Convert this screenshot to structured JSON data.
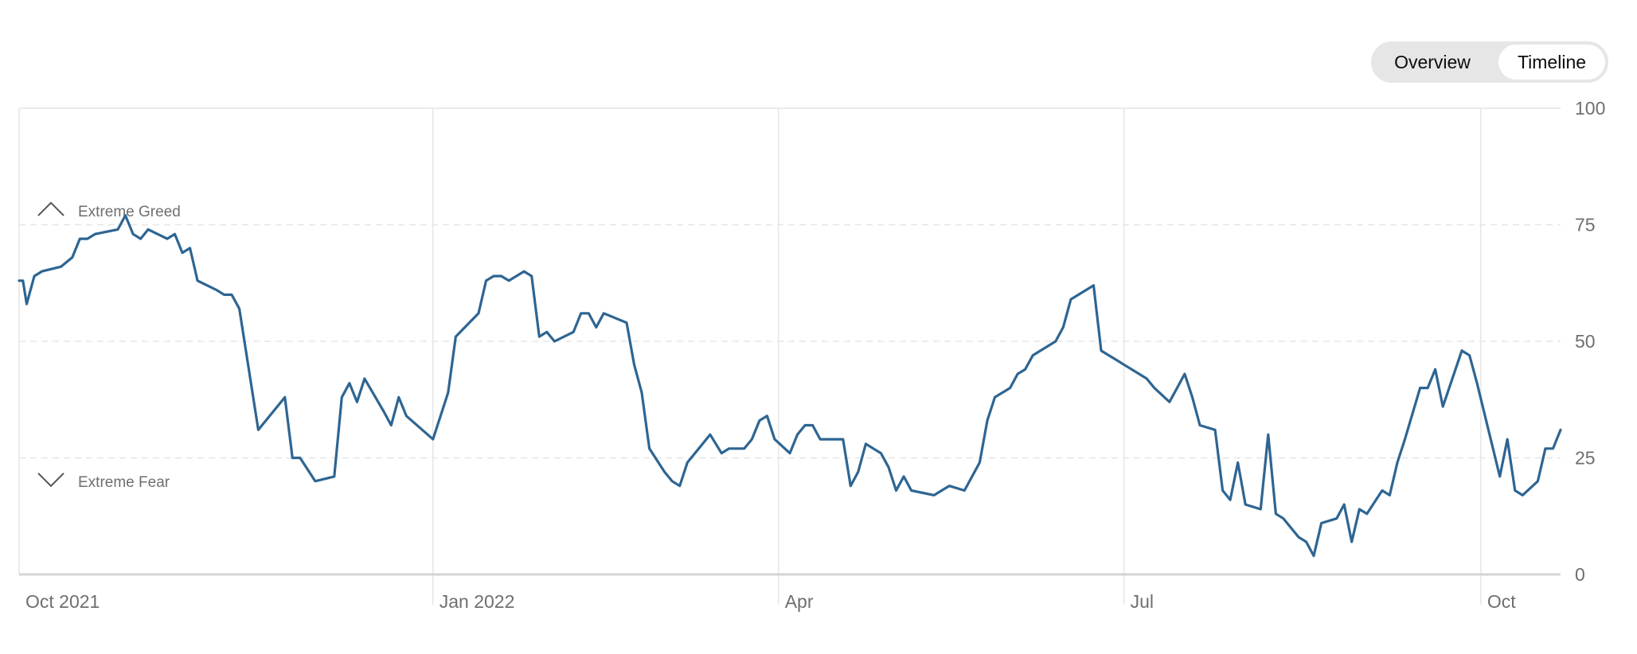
{
  "toggle": {
    "options": [
      "Overview",
      "Timeline"
    ],
    "selected": "Timeline"
  },
  "colors": {
    "line": "#2e6592",
    "grid": "#e6e6e6",
    "axis": "#d4d4d4",
    "text": "#6f6f6f",
    "toggle_bg": "#e6e6e6"
  },
  "chart_data": {
    "type": "line",
    "ylim": [
      0,
      100
    ],
    "yticks": [
      "0",
      "25",
      "50",
      "75",
      "100"
    ],
    "xticks": [
      {
        "label": "Oct 2021",
        "x": "2021-09-13"
      },
      {
        "label": "Jan 2022",
        "x": "2021-12-31"
      },
      {
        "label": "Apr",
        "x": "2022-04-01"
      },
      {
        "label": "Jul",
        "x": "2022-07-01"
      },
      {
        "label": "Oct",
        "x": "2022-10-03"
      }
    ],
    "xlim": [
      "2021-09-13",
      "2022-10-24"
    ],
    "annotations": [
      {
        "label": "Extreme Greed",
        "icon": "chevron-up-icon",
        "y": 78
      },
      {
        "label": "Extreme Fear",
        "icon": "chevron-down-icon",
        "y": 20
      }
    ],
    "grid": "horizontal dashed at 25, 50, 75; vertical solid at x ticks",
    "series": [
      {
        "values": [
          [
            "2021-09-13",
            63
          ],
          [
            "2021-09-14",
            63
          ],
          [
            "2021-09-15",
            58
          ],
          [
            "2021-09-17",
            64
          ],
          [
            "2021-09-19",
            65
          ],
          [
            "2021-09-24",
            66
          ],
          [
            "2021-09-27",
            68
          ],
          [
            "2021-09-29",
            72
          ],
          [
            "2021-10-01",
            72
          ],
          [
            "2021-10-03",
            73
          ],
          [
            "2021-10-09",
            74
          ],
          [
            "2021-10-11",
            77
          ],
          [
            "2021-10-13",
            73
          ],
          [
            "2021-10-15",
            72
          ],
          [
            "2021-10-17",
            74
          ],
          [
            "2021-10-22",
            72
          ],
          [
            "2021-10-24",
            73
          ],
          [
            "2021-10-26",
            69
          ],
          [
            "2021-10-28",
            70
          ],
          [
            "2021-10-30",
            63
          ],
          [
            "2021-11-04",
            61
          ],
          [
            "2021-11-06",
            60
          ],
          [
            "2021-11-08",
            60
          ],
          [
            "2021-11-10",
            57
          ],
          [
            "2021-11-15",
            31
          ],
          [
            "2021-11-22",
            38
          ],
          [
            "2021-11-24",
            25
          ],
          [
            "2021-11-26",
            25
          ],
          [
            "2021-11-30",
            20
          ],
          [
            "2021-12-05",
            21
          ],
          [
            "2021-12-07",
            38
          ],
          [
            "2021-12-09",
            41
          ],
          [
            "2021-12-11",
            37
          ],
          [
            "2021-12-13",
            42
          ],
          [
            "2021-12-18",
            35
          ],
          [
            "2021-12-20",
            32
          ],
          [
            "2021-12-22",
            38
          ],
          [
            "2021-12-24",
            34
          ],
          [
            "2021-12-31",
            29
          ],
          [
            "2022-01-04",
            39
          ],
          [
            "2022-01-06",
            51
          ],
          [
            "2022-01-12",
            56
          ],
          [
            "2022-01-14",
            63
          ],
          [
            "2022-01-16",
            64
          ],
          [
            "2022-01-18",
            64
          ],
          [
            "2022-01-20",
            63
          ],
          [
            "2022-01-24",
            65
          ],
          [
            "2022-01-26",
            64
          ],
          [
            "2022-01-28",
            51
          ],
          [
            "2022-01-30",
            52
          ],
          [
            "2022-02-01",
            50
          ],
          [
            "2022-02-06",
            52
          ],
          [
            "2022-02-08",
            56
          ],
          [
            "2022-02-10",
            56
          ],
          [
            "2022-02-12",
            53
          ],
          [
            "2022-02-14",
            56
          ],
          [
            "2022-02-20",
            54
          ],
          [
            "2022-02-22",
            45
          ],
          [
            "2022-02-24",
            39
          ],
          [
            "2022-02-26",
            27
          ],
          [
            "2022-03-02",
            22
          ],
          [
            "2022-03-04",
            20
          ],
          [
            "2022-03-06",
            19
          ],
          [
            "2022-03-08",
            24
          ],
          [
            "2022-03-14",
            30
          ],
          [
            "2022-03-17",
            26
          ],
          [
            "2022-03-19",
            27
          ],
          [
            "2022-03-23",
            27
          ],
          [
            "2022-03-25",
            29
          ],
          [
            "2022-03-27",
            33
          ],
          [
            "2022-03-29",
            34
          ],
          [
            "2022-03-31",
            29
          ],
          [
            "2022-04-04",
            26
          ],
          [
            "2022-04-06",
            30
          ],
          [
            "2022-04-08",
            32
          ],
          [
            "2022-04-10",
            32
          ],
          [
            "2022-04-12",
            29
          ],
          [
            "2022-04-16",
            29
          ],
          [
            "2022-04-18",
            29
          ],
          [
            "2022-04-20",
            19
          ],
          [
            "2022-04-22",
            22
          ],
          [
            "2022-04-24",
            28
          ],
          [
            "2022-04-26",
            27
          ],
          [
            "2022-04-28",
            26
          ],
          [
            "2022-04-30",
            23
          ],
          [
            "2022-05-02",
            18
          ],
          [
            "2022-05-04",
            21
          ],
          [
            "2022-05-06",
            18
          ],
          [
            "2022-05-12",
            17
          ],
          [
            "2022-05-14",
            18
          ],
          [
            "2022-05-16",
            19
          ],
          [
            "2022-05-20",
            18
          ],
          [
            "2022-05-24",
            24
          ],
          [
            "2022-05-26",
            33
          ],
          [
            "2022-05-28",
            38
          ],
          [
            "2022-06-01",
            40
          ],
          [
            "2022-06-03",
            43
          ],
          [
            "2022-06-05",
            44
          ],
          [
            "2022-06-07",
            47
          ],
          [
            "2022-06-11",
            49
          ],
          [
            "2022-06-13",
            50
          ],
          [
            "2022-06-15",
            53
          ],
          [
            "2022-06-17",
            59
          ],
          [
            "2022-06-23",
            62
          ],
          [
            "2022-06-25",
            48
          ],
          [
            "2022-06-27",
            47
          ],
          [
            "2022-06-29",
            46
          ],
          [
            "2022-07-01",
            45
          ],
          [
            "2022-07-05",
            43
          ],
          [
            "2022-07-07",
            42
          ],
          [
            "2022-07-09",
            40
          ],
          [
            "2022-07-13",
            37
          ],
          [
            "2022-07-15",
            40
          ],
          [
            "2022-07-17",
            43
          ],
          [
            "2022-07-19",
            38
          ],
          [
            "2022-07-21",
            32
          ],
          [
            "2022-07-25",
            31
          ],
          [
            "2022-07-27",
            18
          ],
          [
            "2022-07-29",
            16
          ],
          [
            "2022-07-31",
            24
          ],
          [
            "2022-08-02",
            15
          ],
          [
            "2022-08-06",
            14
          ],
          [
            "2022-08-08",
            30
          ],
          [
            "2022-08-10",
            13
          ],
          [
            "2022-08-12",
            12
          ],
          [
            "2022-08-16",
            8
          ],
          [
            "2022-08-18",
            7
          ],
          [
            "2022-08-20",
            4
          ],
          [
            "2022-08-22",
            11
          ],
          [
            "2022-08-26",
            12
          ],
          [
            "2022-08-28",
            15
          ],
          [
            "2022-08-30",
            7
          ],
          [
            "2022-09-01",
            14
          ],
          [
            "2022-09-03",
            13
          ],
          [
            "2022-09-07",
            18
          ],
          [
            "2022-09-09",
            17
          ],
          [
            "2022-09-11",
            24
          ],
          [
            "2022-09-13",
            29
          ],
          [
            "2022-09-17",
            40
          ],
          [
            "2022-09-19",
            40
          ],
          [
            "2022-09-21",
            44
          ],
          [
            "2022-09-23",
            36
          ],
          [
            "2022-09-28",
            48
          ],
          [
            "2022-09-30",
            47
          ],
          [
            "2022-10-02",
            41
          ],
          [
            "2022-10-08",
            21
          ],
          [
            "2022-10-10",
            29
          ],
          [
            "2022-10-12",
            18
          ],
          [
            "2022-10-14",
            17
          ],
          [
            "2022-10-18",
            20
          ],
          [
            "2022-10-20",
            27
          ],
          [
            "2022-10-22",
            27
          ],
          [
            "2022-10-24",
            31
          ]
        ]
      }
    ]
  }
}
